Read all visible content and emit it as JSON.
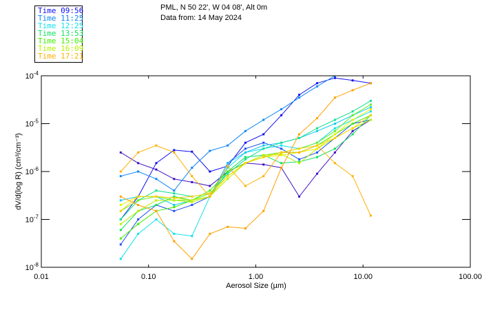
{
  "header": {
    "title_line1": "PML, N 50 22', W 04 08', Alt 0m",
    "title_line2": "Data from: 14 May 2024"
  },
  "legend": [
    {
      "label": "Time 09:56",
      "color": "#1010f0"
    },
    {
      "label": "Time 11:25",
      "color": "#0a86f5"
    },
    {
      "label": "Time 12:25",
      "color": "#10e0f0"
    },
    {
      "label": "Time 13:53",
      "color": "#10e060"
    },
    {
      "label": "Time 15:04",
      "color": "#40ee00"
    },
    {
      "label": "Time 16:09",
      "color": "#b8f000"
    },
    {
      "label": "Time 17:21",
      "color": "#ffb000"
    }
  ],
  "chart_data": {
    "type": "line",
    "xlabel": "Aerosol Size (µm)",
    "ylabel": "dV/d(log R) (cm³/cm⁻³)",
    "xscale": "log",
    "yscale": "log",
    "xlim": [
      0.01,
      100
    ],
    "ylim": [
      1e-08,
      0.0001
    ],
    "xticks": [
      "0.01",
      "0.10",
      "1.00",
      "10.00",
      "100.00"
    ],
    "xtick_values": [
      0.01,
      0.1,
      1,
      10,
      100
    ],
    "ytick_base": "10",
    "ytick_exponents": [
      "-8",
      "-7",
      "-6",
      "-5",
      "-4"
    ],
    "ytick_values": [
      1e-08,
      1e-07,
      1e-06,
      1e-05,
      0.0001
    ],
    "x": [
      0.055,
      0.08,
      0.118,
      0.173,
      0.254,
      0.373,
      0.547,
      0.8,
      1.18,
      1.73,
      2.54,
      3.73,
      5.47,
      8.0,
      11.8
    ],
    "series": [
      {
        "name": "Time 09:56",
        "color": "#4010c0",
        "values": [
          2.5e-06,
          1.5e-06,
          1.1e-06,
          7e-07,
          6e-07,
          5e-07,
          1e-06,
          1.5e-06,
          1.4e-06,
          1.2e-06,
          3e-07,
          9e-07,
          2.5e-06,
          7e-06,
          1.2e-05
        ]
      },
      {
        "name": "Time 09:56",
        "color": "#1010f0",
        "values": [
          1e-07,
          3e-07,
          1.5e-06,
          2.8e-06,
          2.6e-06,
          1e-06,
          1.3e-06,
          4e-06,
          6e-06,
          1.5e-05,
          4e-05,
          7e-05,
          9e-05,
          8e-05,
          7e-05
        ]
      },
      {
        "name": "Time 11:25",
        "color": "#0a86f5",
        "values": [
          8e-07,
          1e-06,
          7e-07,
          4e-07,
          1.2e-06,
          2.7e-06,
          3.5e-06,
          7e-06,
          1.2e-05,
          2e-05,
          3.5e-05,
          6e-05,
          0.0001,
          0.00015,
          0.00015
        ]
      },
      {
        "name": "Time 11:25",
        "color": "#2050f0",
        "values": [
          3e-08,
          1e-07,
          2e-07,
          1.5e-07,
          2e-07,
          3e-07,
          1.5e-06,
          3e-06,
          4e-06,
          3e-06,
          1.8e-06,
          2.5e-06,
          5e-06,
          1e-05,
          1.2e-05
        ]
      },
      {
        "name": "Time 12:25",
        "color": "#10e0f0",
        "values": [
          1.5e-08,
          5e-08,
          1e-07,
          5e-08,
          4.5e-08,
          3e-07,
          1.2e-06,
          2.5e-06,
          3e-06,
          3.5e-06,
          3e-06,
          4e-06,
          8e-06,
          1.2e-05,
          1.8e-05
        ]
      },
      {
        "name": "Time 12:25",
        "color": "#10c8f0",
        "values": [
          2.5e-07,
          3e-07,
          3e-07,
          2e-07,
          2.5e-07,
          3e-07,
          1.5e-06,
          2.5e-06,
          3.5e-06,
          4e-06,
          5e-06,
          7e-06,
          1e-05,
          1.5e-05,
          2.2e-05
        ]
      },
      {
        "name": "Time 13:53",
        "color": "#10e060",
        "values": [
          6e-08,
          1.5e-07,
          2e-07,
          3e-07,
          2.5e-07,
          3e-07,
          1e-06,
          2e-06,
          2.2e-06,
          1.5e-06,
          1.6e-06,
          2e-06,
          3e-06,
          6e-06,
          1.5e-05
        ]
      },
      {
        "name": "Time 13:53",
        "color": "#10e090",
        "values": [
          1e-07,
          2.5e-07,
          4e-07,
          3.5e-07,
          3e-07,
          3.5e-07,
          9e-07,
          1.8e-06,
          3e-06,
          4e-06,
          5e-06,
          8e-06,
          1.2e-05,
          1.8e-05,
          3e-05
        ]
      },
      {
        "name": "Time 15:04",
        "color": "#40ee00",
        "values": [
          4e-08,
          8e-08,
          1.5e-07,
          1.8e-07,
          2.5e-07,
          4e-07,
          1e-06,
          1.5e-06,
          2e-06,
          2.5e-06,
          2.5e-06,
          3.5e-06,
          6e-06,
          1e-05,
          1.5e-05
        ]
      },
      {
        "name": "Time 15:04",
        "color": "#60f020",
        "values": [
          1.5e-07,
          2.5e-07,
          3e-07,
          2.5e-07,
          2.5e-07,
          3.5e-07,
          8e-07,
          1.5e-06,
          2.2e-06,
          2.5e-06,
          3e-06,
          4e-06,
          7e-06,
          1.5e-05,
          2.5e-05
        ]
      },
      {
        "name": "Time 16:09",
        "color": "#b8f000",
        "values": [
          8e-08,
          1.5e-07,
          2.5e-07,
          2.5e-07,
          2.3e-07,
          3e-07,
          7e-07,
          1.5e-06,
          2.2e-06,
          2.3e-06,
          1.5e-06,
          3e-06,
          5e-06,
          8e-06,
          1.2e-05
        ]
      },
      {
        "name": "Time 16:09",
        "color": "#e8f000",
        "values": [
          2e-07,
          3e-07,
          3e-07,
          2.8e-07,
          2.5e-07,
          3e-07,
          8e-07,
          1.5e-06,
          2e-06,
          2.2e-06,
          2.5e-06,
          3e-06,
          6e-06,
          1.2e-05,
          2e-05
        ]
      },
      {
        "name": "Time 17:21",
        "color": "#ffb000",
        "values": [
          1e-06,
          2.5e-06,
          3.5e-06,
          2.5e-06,
          8e-07,
          3e-07,
          1.3e-06,
          5e-07,
          8e-07,
          2.5e-06,
          2.5e-06,
          3.5e-06,
          1.5e-06,
          8e-07,
          1.2e-07
        ]
      },
      {
        "name": "Time 17:21",
        "color": "#ffa000",
        "values": [
          3e-07,
          2e-07,
          1.5e-07,
          3.5e-08,
          1.5e-08,
          5e-08,
          7e-08,
          6.5e-08,
          1.5e-07,
          1.2e-06,
          6e-06,
          1.3e-05,
          3.5e-05,
          5e-05,
          7e-05
        ]
      },
      {
        "name": "Time 17:21",
        "color": "#ffd000",
        "values": [
          1.5e-07,
          3e-07,
          3e-07,
          2.8e-07,
          3e-07,
          3.5e-07,
          8e-07,
          1.5e-06,
          2e-06,
          2.5e-06,
          3e-06,
          3.5e-06,
          5e-06,
          8e-06,
          1.5e-05
        ]
      }
    ]
  }
}
